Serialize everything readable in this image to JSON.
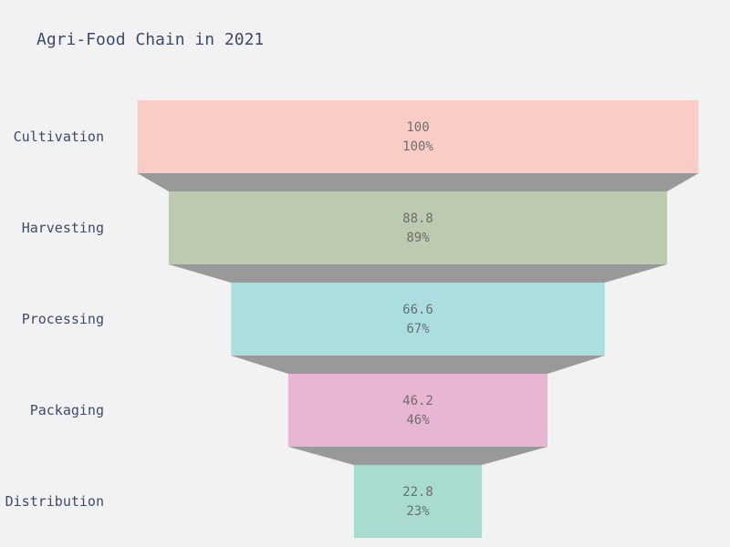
{
  "chart_data": {
    "type": "funnel",
    "title": "Agri-Food Chain in 2021",
    "categories": [
      "Cultivation",
      "Harvesting",
      "Processing",
      "Packaging",
      "Distribution"
    ],
    "values": [
      100,
      88.8,
      66.6,
      46.2,
      22.8
    ],
    "value_labels": [
      "100",
      "88.8",
      "66.6",
      "46.2",
      "22.8"
    ],
    "percent_labels": [
      "100%",
      "89%",
      "67%",
      "46%",
      "23%"
    ],
    "colors": [
      "#f9cdc6",
      "#bccab0",
      "#abdede",
      "#e8b6d3",
      "#a8dcd1"
    ],
    "connector_color": "#999999"
  }
}
